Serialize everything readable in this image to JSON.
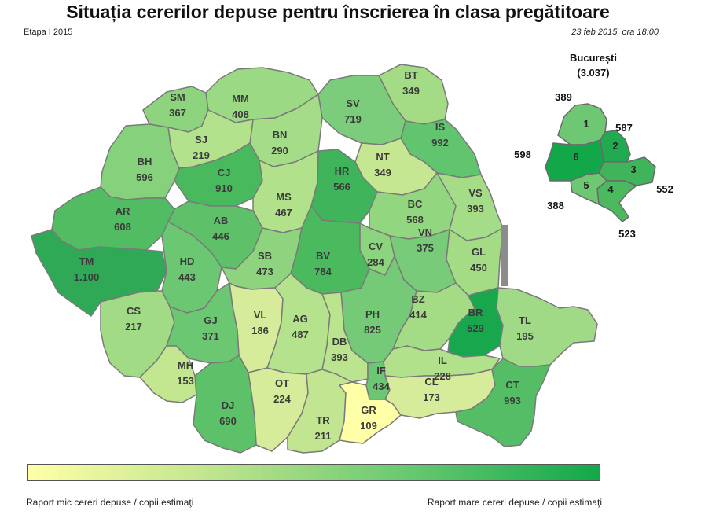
{
  "header": {
    "title": "Situația cererilor depuse pentru înscrierea în clasa pregătitoare",
    "stage": "Etapa I 2015",
    "date": "23 feb 2015, ora 18:00"
  },
  "colors": {
    "low": "#ffffa8",
    "high": "#12a84a",
    "border": "#7a7a7a",
    "sea_marker": "#8c8c8c"
  },
  "counties": [
    {
      "code": "SM",
      "value": "367",
      "color": "#8ed47f"
    },
    {
      "code": "MM",
      "value": "408",
      "color": "#9cd984"
    },
    {
      "code": "BT",
      "value": "349",
      "color": "#a4dc86"
    },
    {
      "code": "SV",
      "value": "719",
      "color": "#7bcd7b"
    },
    {
      "code": "BN",
      "value": "290",
      "color": "#a5dc88"
    },
    {
      "code": "SJ",
      "value": "219",
      "color": "#b3e28c"
    },
    {
      "code": "IS",
      "value": "992",
      "color": "#61c56f"
    },
    {
      "code": "BH",
      "value": "596",
      "color": "#85d17c"
    },
    {
      "code": "CJ",
      "value": "910",
      "color": "#49b95e"
    },
    {
      "code": "NT",
      "value": "349",
      "color": "#c6e791"
    },
    {
      "code": "HR",
      "value": "566",
      "color": "#3fb45a"
    },
    {
      "code": "MS",
      "value": "467",
      "color": "#b2e18c"
    },
    {
      "code": "BC",
      "value": "568",
      "color": "#93d680"
    },
    {
      "code": "VS",
      "value": "393",
      "color": "#a5dc87"
    },
    {
      "code": "AR",
      "value": "608",
      "color": "#52bc62"
    },
    {
      "code": "AB",
      "value": "446",
      "color": "#5ec16a"
    },
    {
      "code": "TM",
      "value": "1.100",
      "color": "#2fa955"
    },
    {
      "code": "HD",
      "value": "443",
      "color": "#6cc772"
    },
    {
      "code": "SB",
      "value": "473",
      "color": "#8ed47e"
    },
    {
      "code": "BV",
      "value": "784",
      "color": "#4bba5f"
    },
    {
      "code": "CV",
      "value": "284",
      "color": "#8dd47f"
    },
    {
      "code": "VN",
      "value": "375",
      "color": "#78cc79"
    },
    {
      "code": "GL",
      "value": "450",
      "color": "#a4dc86"
    },
    {
      "code": "CS",
      "value": "217",
      "color": "#a1db86"
    },
    {
      "code": "VL",
      "value": "186",
      "color": "#d6ec9b"
    },
    {
      "code": "AG",
      "value": "487",
      "color": "#b4e28d"
    },
    {
      "code": "GJ",
      "value": "371",
      "color": "#6cc772"
    },
    {
      "code": "PH",
      "value": "825",
      "color": "#74ca76"
    },
    {
      "code": "BZ",
      "value": "414",
      "color": "#a4dc86"
    },
    {
      "code": "BR",
      "value": "529",
      "color": "#18a74c"
    },
    {
      "code": "TL",
      "value": "195",
      "color": "#a0da86"
    },
    {
      "code": "DB",
      "value": "393",
      "color": "#bbe48f"
    },
    {
      "code": "MH",
      "value": "153",
      "color": "#c3e691"
    },
    {
      "code": "IL",
      "value": "228",
      "color": "#b2e18c"
    },
    {
      "code": "IF",
      "value": "434",
      "color": "#6cc772"
    },
    {
      "code": "OT",
      "value": "224",
      "color": "#d6ec9b"
    },
    {
      "code": "DJ",
      "value": "690",
      "color": "#5dc169"
    },
    {
      "code": "TR",
      "value": "211",
      "color": "#c1e590"
    },
    {
      "code": "GR",
      "value": "109",
      "color": "#ffffa8"
    },
    {
      "code": "CL",
      "value": "173",
      "color": "#d6ec9b"
    },
    {
      "code": "CT",
      "value": "993",
      "color": "#55bd65"
    }
  ],
  "bucharest": {
    "name": "București",
    "total": "(3.037)",
    "sectors": [
      {
        "number": "1",
        "value": "389",
        "color": "#6ec873"
      },
      {
        "number": "2",
        "value": "587",
        "color": "#21aa50"
      },
      {
        "number": "3",
        "value": "552",
        "color": "#3fb45a"
      },
      {
        "number": "4",
        "value": "523",
        "color": "#4bba5f"
      },
      {
        "number": "5",
        "value": "388",
        "color": "#6ec873"
      },
      {
        "number": "6",
        "value": "598",
        "color": "#12a84a"
      }
    ]
  },
  "legend": {
    "low_label": "Raport mic cereri depuse / copii estimaţi",
    "high_label": "Raport mare cereri depuse / copii estimaţi"
  }
}
